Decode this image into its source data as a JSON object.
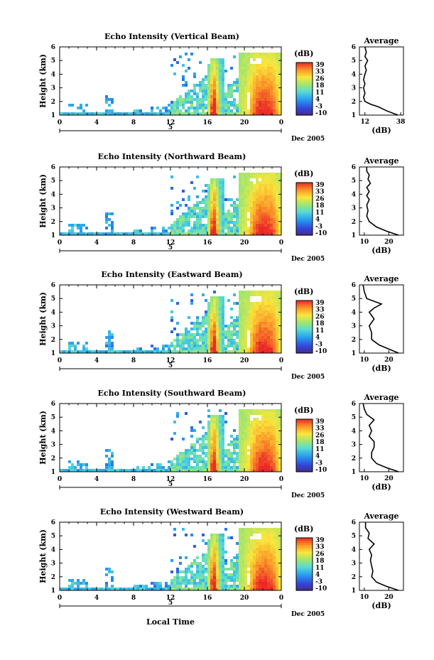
{
  "chart_data": {
    "type": "heatmap",
    "x_label": "Local Time",
    "date_label": "Dec 2005",
    "x_ticks": [
      "0",
      "4",
      "8",
      "12",
      "16",
      "20",
      "0"
    ],
    "x_range": [
      0,
      24
    ],
    "day_marker": "5",
    "y_label": "Height (km)",
    "y_ticks": [
      "1",
      "2",
      "3",
      "4",
      "5",
      "6"
    ],
    "y_range": [
      1,
      6
    ],
    "colorbar": {
      "title": "(dB)",
      "ticks": [
        "39",
        "33",
        "26",
        "18",
        "11",
        "4",
        "-3",
        "-10"
      ],
      "range": [
        -10,
        39
      ]
    },
    "average_panel": {
      "title": "Average",
      "xlabel": "(dB)"
    },
    "panels": [
      {
        "title": "Echo Intensity (Vertical Beam)",
        "avg_xticks": [
          "12",
          "38"
        ],
        "avg_xrange": [
          8,
          40
        ],
        "avg_profile": [
          [
            1.0,
            36
          ],
          [
            1.3,
            28
          ],
          [
            1.6,
            22
          ],
          [
            1.8,
            16
          ],
          [
            2.0,
            12
          ],
          [
            2.3,
            11
          ],
          [
            2.6,
            12
          ],
          [
            3.0,
            11
          ],
          [
            3.3,
            12
          ],
          [
            3.6,
            11
          ],
          [
            4.0,
            12
          ],
          [
            4.3,
            13
          ],
          [
            4.6,
            12
          ],
          [
            5.0,
            14
          ],
          [
            5.3,
            12
          ],
          [
            5.6,
            13
          ],
          [
            6.0,
            12
          ]
        ]
      },
      {
        "title": "Echo Intensity (Northward Beam)",
        "avg_xticks": [
          "10",
          "20"
        ],
        "avg_xrange": [
          8,
          26
        ],
        "avg_profile": [
          [
            1.0,
            24
          ],
          [
            1.3,
            19
          ],
          [
            1.6,
            15
          ],
          [
            2.0,
            12
          ],
          [
            2.4,
            11
          ],
          [
            2.8,
            11.5
          ],
          [
            3.2,
            11
          ],
          [
            3.6,
            12
          ],
          [
            3.9,
            11
          ],
          [
            4.2,
            12
          ],
          [
            4.5,
            11
          ],
          [
            4.8,
            12.5
          ],
          [
            5.1,
            11.5
          ],
          [
            5.4,
            12
          ],
          [
            5.7,
            11
          ],
          [
            6.0,
            11
          ]
        ]
      },
      {
        "title": "Echo Intensity (Eastward Beam)",
        "avg_xticks": [
          "10",
          "20"
        ],
        "avg_xrange": [
          8,
          26
        ],
        "avg_profile": [
          [
            1.0,
            24
          ],
          [
            1.3,
            20
          ],
          [
            1.6,
            16
          ],
          [
            2.0,
            13
          ],
          [
            2.5,
            13
          ],
          [
            3.0,
            12
          ],
          [
            3.5,
            14
          ],
          [
            4.0,
            12
          ],
          [
            4.3,
            14
          ],
          [
            4.6,
            17
          ],
          [
            5.0,
            11
          ],
          [
            5.5,
            10
          ],
          [
            6.0,
            9.5
          ]
        ]
      },
      {
        "title": "Echo Intensity (Southward Beam)",
        "avg_xticks": [
          "10",
          "20"
        ],
        "avg_xrange": [
          8,
          26
        ],
        "avg_profile": [
          [
            1.0,
            24
          ],
          [
            1.3,
            19
          ],
          [
            1.6,
            15
          ],
          [
            2.0,
            13
          ],
          [
            2.4,
            13
          ],
          [
            2.8,
            14
          ],
          [
            3.2,
            14
          ],
          [
            3.6,
            12
          ],
          [
            4.0,
            13
          ],
          [
            4.4,
            12
          ],
          [
            4.8,
            14
          ],
          [
            5.2,
            11
          ],
          [
            5.6,
            10
          ],
          [
            6.0,
            9.5
          ]
        ]
      },
      {
        "title": "Echo Intensity (Westward Beam)",
        "avg_xticks": [
          "10",
          "20"
        ],
        "avg_xrange": [
          8,
          26
        ],
        "avg_profile": [
          [
            1.0,
            24
          ],
          [
            1.3,
            19
          ],
          [
            1.6,
            15
          ],
          [
            2.0,
            13
          ],
          [
            2.4,
            13.5
          ],
          [
            2.8,
            13
          ],
          [
            3.2,
            12.5
          ],
          [
            3.6,
            13
          ],
          [
            4.0,
            12
          ],
          [
            4.4,
            14
          ],
          [
            4.8,
            11.5
          ],
          [
            5.2,
            12
          ],
          [
            5.6,
            10.5
          ],
          [
            6.0,
            10.5
          ]
        ]
      }
    ]
  }
}
